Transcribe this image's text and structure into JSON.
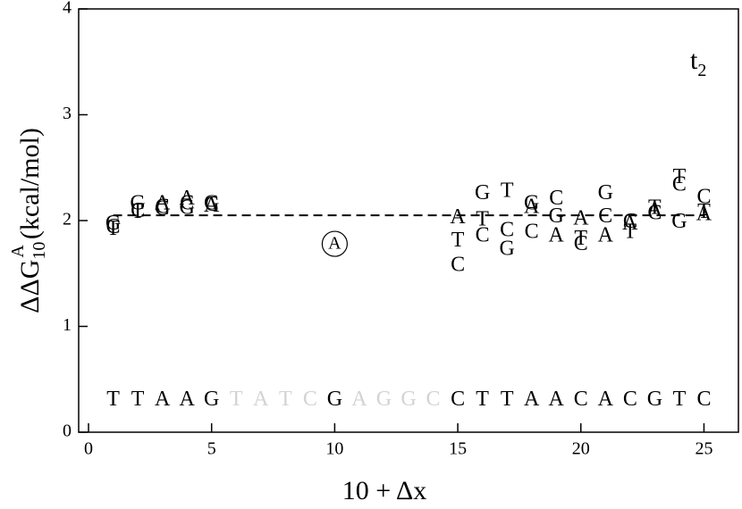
{
  "chart_data": {
    "type": "scatter",
    "ylabel": {
      "main": "ΔΔG",
      "sub": "10",
      "sup": "A",
      "unit": "(kcal/mol)"
    },
    "xlabel": "10 + Δx",
    "annotation": {
      "main": "t",
      "sub": "2"
    },
    "xlim": [
      -0.4,
      26.4
    ],
    "ylim": [
      0,
      4
    ],
    "xticks": [
      0,
      5,
      10,
      15,
      20,
      25
    ],
    "yticks": [
      0,
      1,
      2,
      3,
      4
    ],
    "series": [
      {
        "name": "A",
        "color": "#000000",
        "x": [
          3,
          4,
          5,
          15,
          18,
          19,
          20,
          21,
          22,
          23,
          25
        ],
        "values": [
          2.15,
          2.2,
          2.13,
          2.02,
          2.12,
          1.85,
          2.01,
          1.85,
          1.96,
          2.09,
          2.05
        ]
      },
      {
        "name": "C",
        "color": "#000000",
        "x": [
          1,
          2,
          3,
          4,
          5,
          15,
          16,
          17,
          18,
          19,
          20,
          21,
          22,
          23,
          24,
          25
        ],
        "values": [
          1.93,
          2.08,
          2.12,
          2.15,
          2.14,
          1.57,
          1.85,
          1.9,
          1.88,
          2.2,
          1.77,
          2.03,
          1.98,
          2.06,
          2.33,
          2.21
        ]
      },
      {
        "name": "G",
        "color": "#000000",
        "x": [
          1,
          2,
          3,
          4,
          5,
          16,
          17,
          18,
          19,
          21,
          24
        ],
        "values": [
          1.96,
          2.15,
          2.1,
          2.11,
          2.15,
          2.25,
          1.72,
          2.15,
          2.03,
          2.25,
          1.98
        ]
      },
      {
        "name": "T",
        "color": "#000000",
        "x": [
          1,
          2,
          15,
          16,
          17,
          20,
          22,
          23,
          24,
          25
        ],
        "values": [
          1.91,
          2.07,
          1.8,
          2.0,
          2.27,
          1.82,
          1.88,
          2.11,
          2.4,
          2.07
        ]
      }
    ],
    "highlight": {
      "label": "A",
      "x": 10,
      "y": 1.78
    },
    "reference_line": {
      "value": 2.05,
      "from": 1,
      "to": 25
    },
    "sequence": {
      "y": 0.3,
      "x": [
        1,
        2,
        3,
        4,
        5,
        6,
        7,
        8,
        9,
        10,
        11,
        12,
        13,
        14,
        15,
        16,
        17,
        18,
        19,
        20,
        21,
        22,
        23,
        24,
        25
      ],
      "letters": [
        "T",
        "T",
        "A",
        "A",
        "G",
        "T",
        "A",
        "T",
        "C",
        "G",
        "A",
        "G",
        "G",
        "C",
        "C",
        "T",
        "T",
        "A",
        "A",
        "C",
        "A",
        "C",
        "G",
        "T",
        "C"
      ],
      "colors": [
        "#000000",
        "#000000",
        "#000000",
        "#000000",
        "#000000",
        "#d3d3d3",
        "#d3d3d3",
        "#d3d3d3",
        "#d3d3d3",
        "#000000",
        "#d3d3d3",
        "#d3d3d3",
        "#d3d3d3",
        "#d3d3d3",
        "#000000",
        "#000000",
        "#000000",
        "#000000",
        "#000000",
        "#000000",
        "#000000",
        "#000000",
        "#000000",
        "#000000",
        "#000000"
      ]
    }
  }
}
